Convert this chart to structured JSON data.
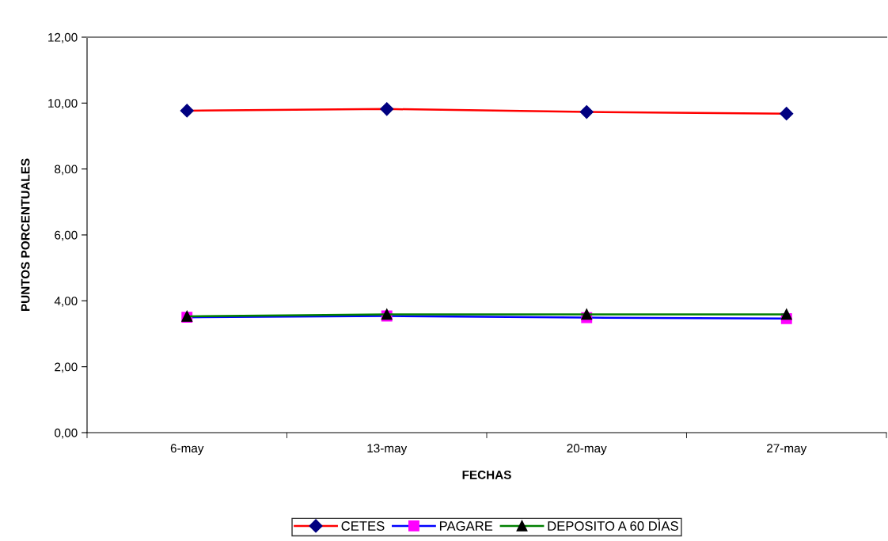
{
  "chart_data": {
    "type": "line",
    "xlabel": "FECHAS",
    "ylabel": "PUNTOS PORCENTUALES",
    "categories": [
      "6-may",
      "13-may",
      "20-may",
      "27-may"
    ],
    "series": [
      {
        "name": "CETES",
        "color": "#ff0000",
        "colors": [
          "#000080",
          "#000080",
          "#000080",
          "#000080"
        ],
        "marker": "diamond",
        "values": [
          9.77,
          9.82,
          9.73,
          9.68
        ]
      },
      {
        "name": "PAGARE",
        "color": "#0000ff",
        "colors": [
          "#ff00ff",
          "#ff00ff",
          "#ff00ff",
          "#ff00ff"
        ],
        "marker": "square",
        "values": [
          3.5,
          3.54,
          3.49,
          3.46
        ]
      },
      {
        "name": "DEPOSITO A 60 DÌAS",
        "color": "#008000",
        "colors": [
          "#000000",
          "#000000",
          "#000000",
          "#000000"
        ],
        "marker": "triangle",
        "values": [
          3.53,
          3.59,
          3.59,
          3.59
        ]
      }
    ],
    "ylim": [
      0,
      12
    ],
    "yticks": [
      {
        "value": 0,
        "label": "0,00"
      },
      {
        "value": 2,
        "label": "2,00"
      },
      {
        "value": 4,
        "label": "4,00"
      },
      {
        "value": 6,
        "label": "6,00"
      },
      {
        "value": 8,
        "label": "8,00"
      },
      {
        "value": 10,
        "label": "10,00"
      },
      {
        "value": 12,
        "label": "12,00"
      }
    ],
    "legend": "bottom",
    "line_style": "solid"
  }
}
